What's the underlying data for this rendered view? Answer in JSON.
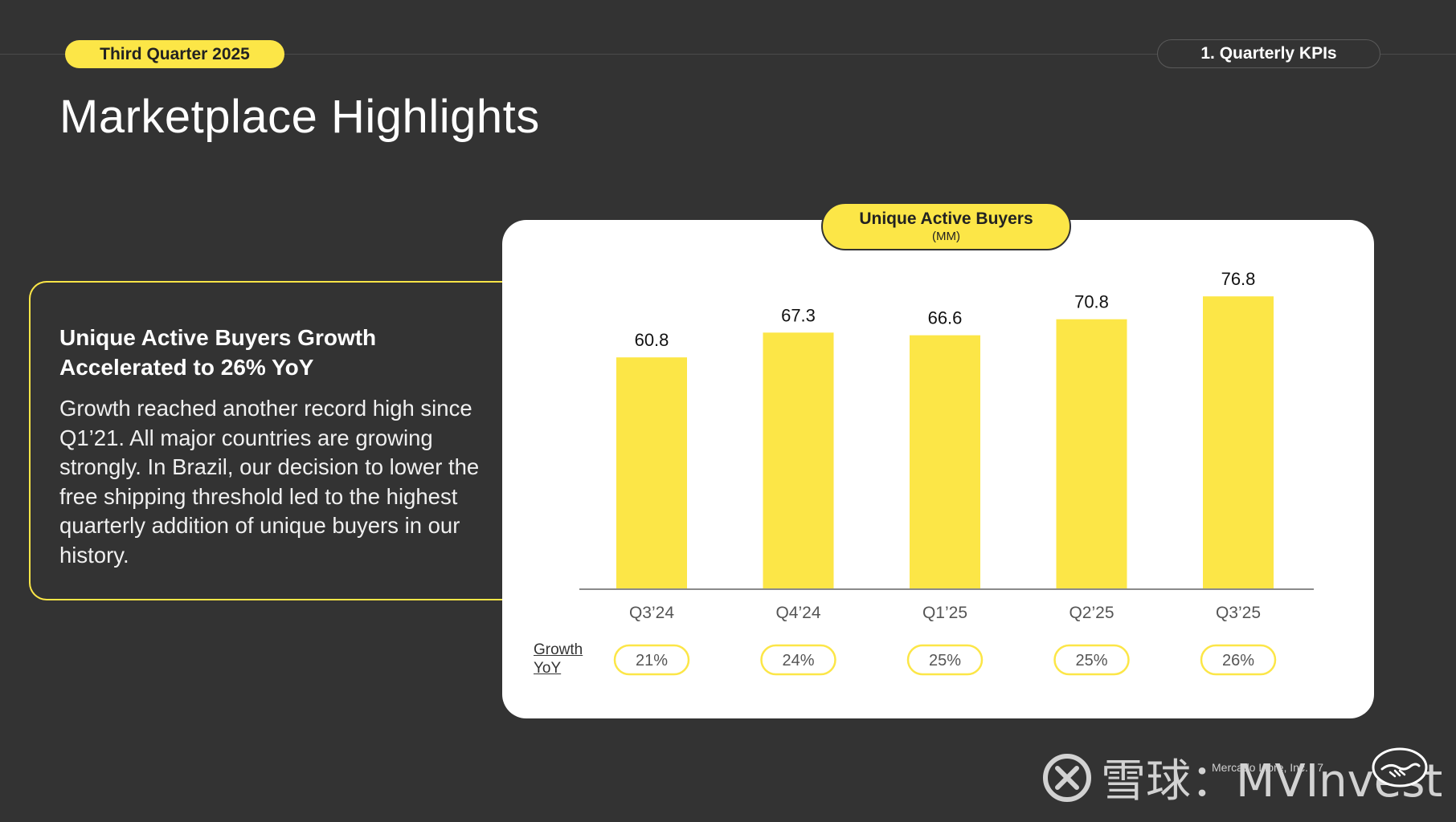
{
  "header": {
    "quarter_label": "Third Quarter 2025",
    "section_label": "1. Quarterly KPIs"
  },
  "page_title": "Marketplace Highlights",
  "callout": {
    "heading": "Unique Active Buyers Growth Accelerated to 26% YoY",
    "body": "Growth reached another record high since Q1’21. All major countries are growing strongly. In Brazil, our decision to lower the free shipping threshold led to the highest quarterly addition of unique buyers in our history."
  },
  "chart_data": {
    "type": "bar",
    "title": "Unique Active Buyers",
    "subtitle": "(MM)",
    "categories": [
      "Q3’24",
      "Q4’24",
      "Q1’25",
      "Q2’25",
      "Q3’25"
    ],
    "values": [
      60.8,
      67.3,
      66.6,
      70.8,
      76.8
    ],
    "data_labels": [
      "60.8",
      "67.3",
      "66.6",
      "70.8",
      "76.8"
    ],
    "growth_label": [
      "Growth",
      "YoY"
    ],
    "growth_yoy": [
      "21%",
      "24%",
      "25%",
      "25%",
      "26%"
    ],
    "ylim": [
      0,
      80
    ],
    "grid": false,
    "legend": "none",
    "bar_color": "#FCE647"
  },
  "footer": {
    "text": "Mercado Libre, Inc.  |  7",
    "watermark": "雪球：MVInvest"
  },
  "colors": {
    "background": "#333333",
    "accent": "#FCE647",
    "card": "#FFFFFF"
  }
}
